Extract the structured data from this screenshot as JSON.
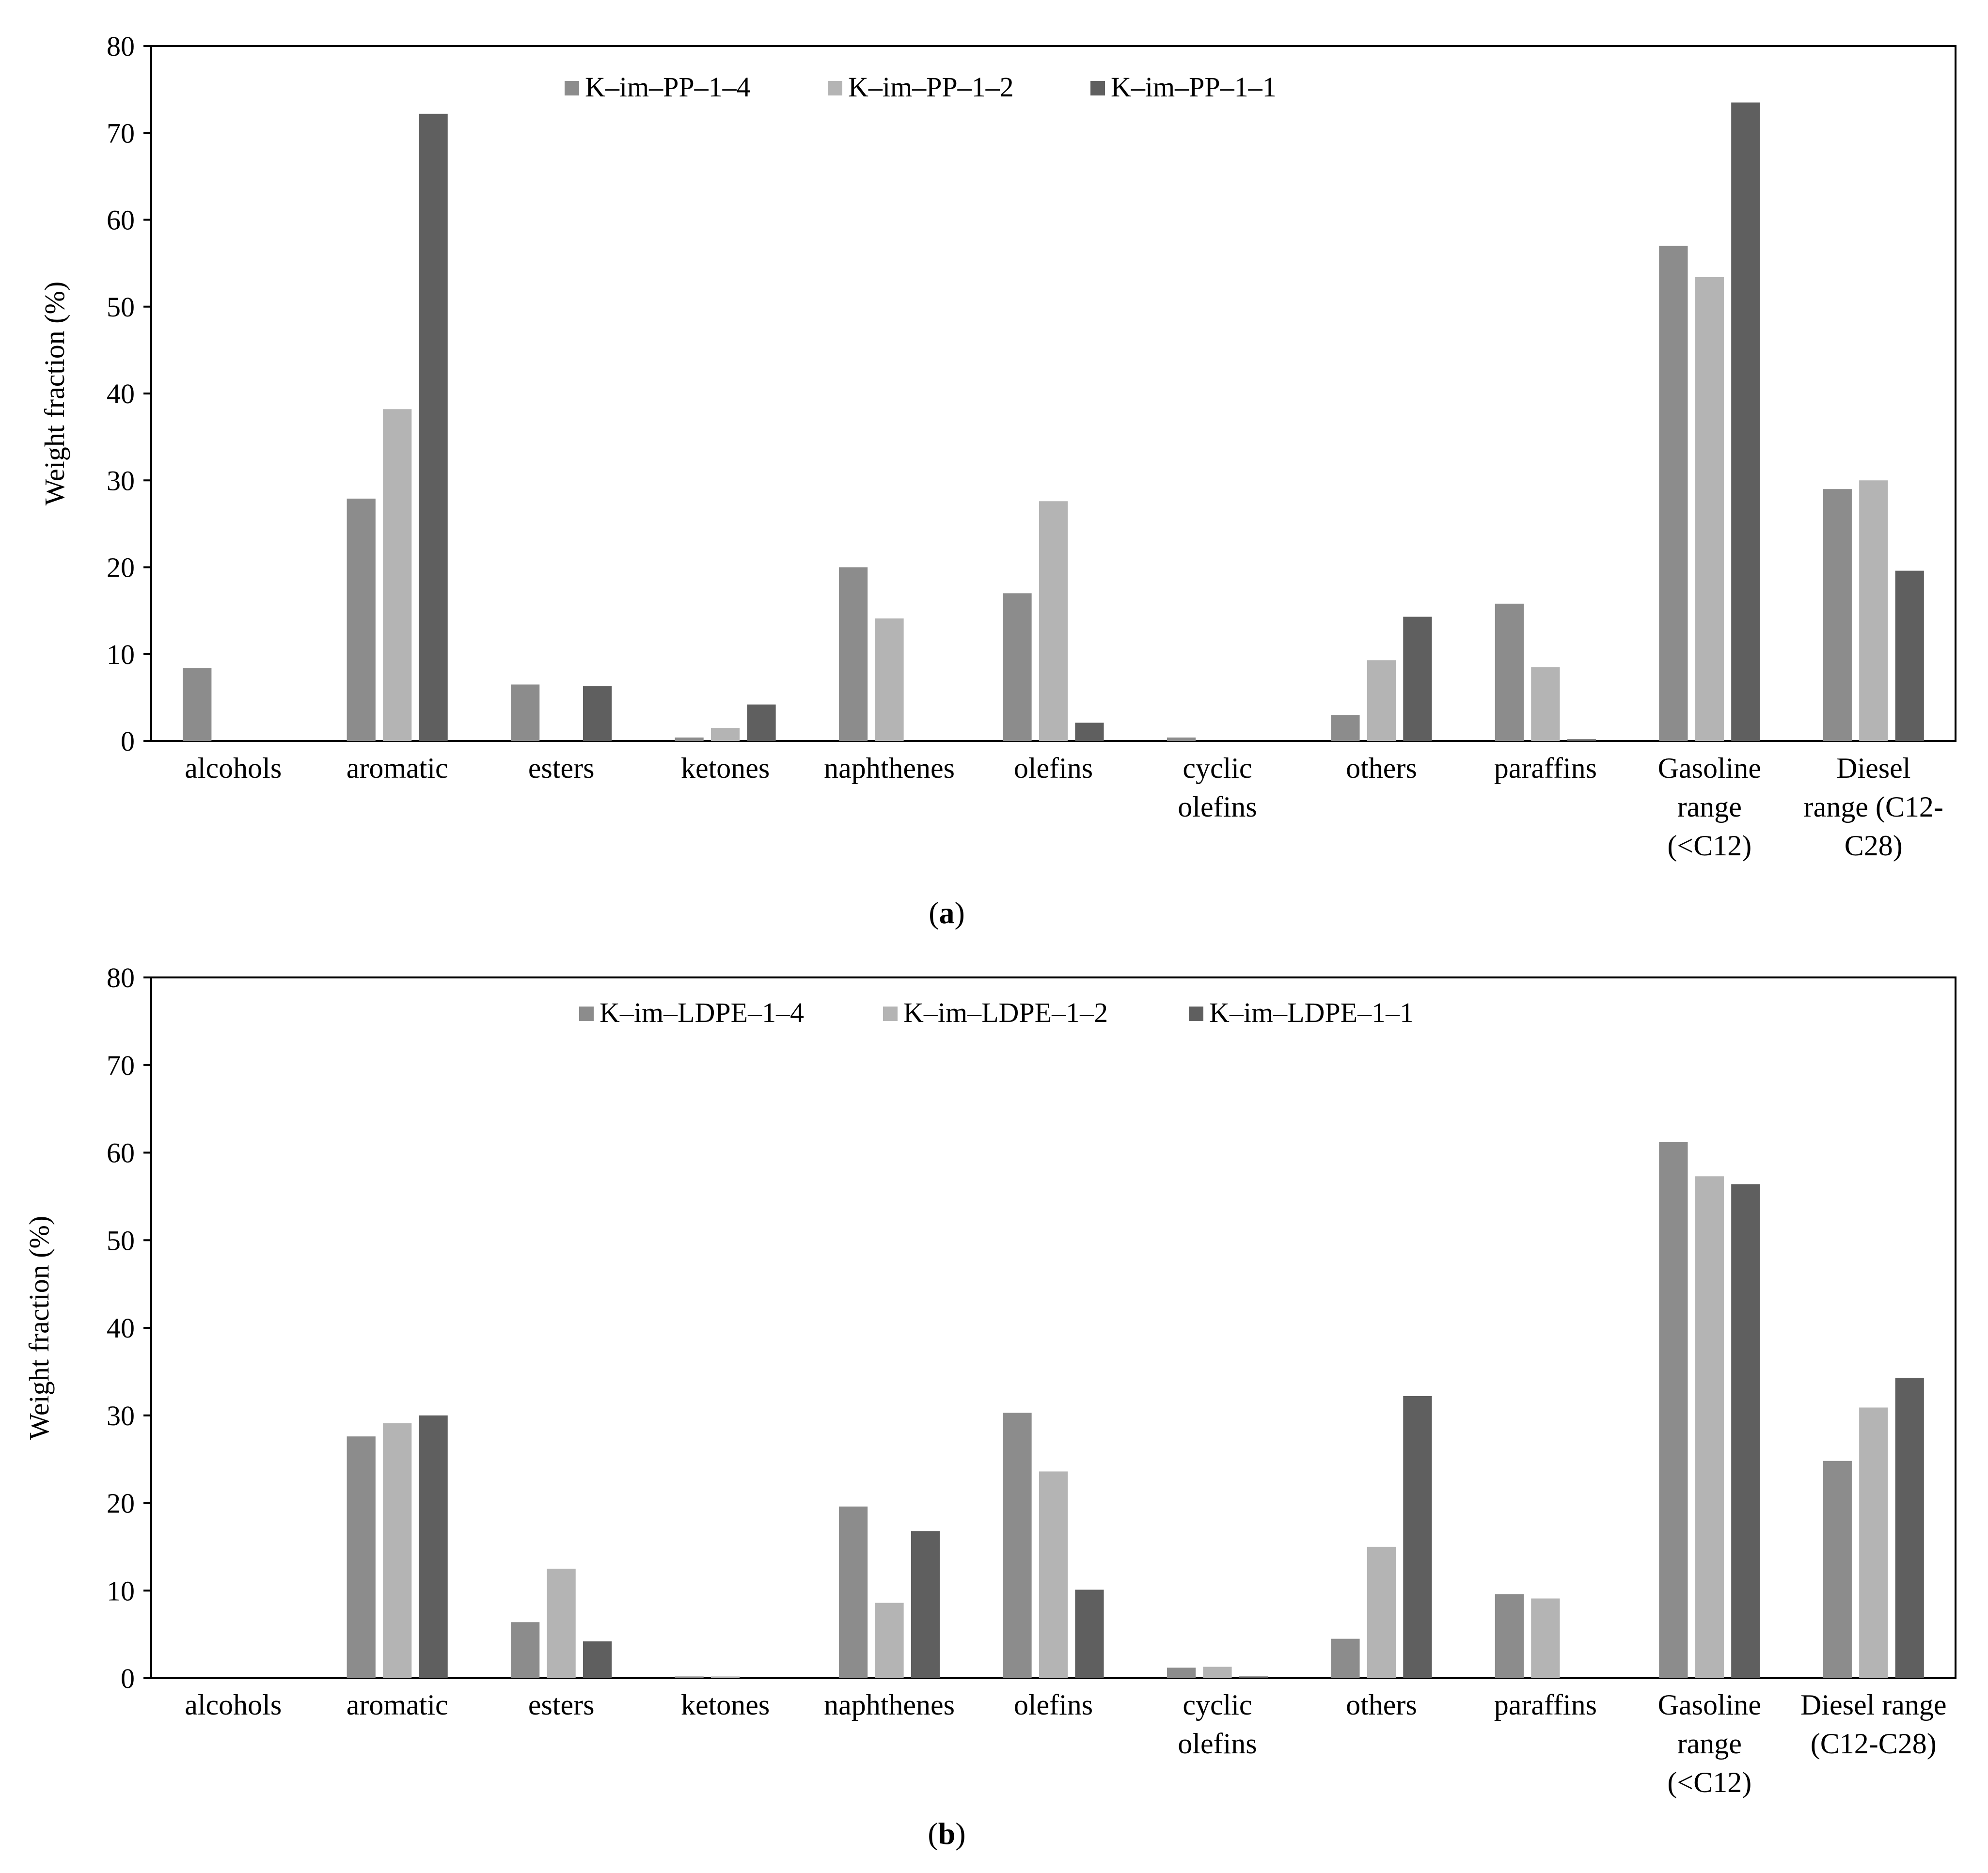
{
  "colors": {
    "series_1_4": "#8c8c8c",
    "series_1_2": "#b4b4b4",
    "series_1_1": "#5f5f5f",
    "axis": "#000000"
  },
  "chart_data": [
    {
      "type": "bar",
      "panel_label": {
        "open": "(",
        "letter": "a",
        "close": ")"
      },
      "ylabel": "Weight fraction (%)",
      "xlabel": "",
      "ylim": [
        0,
        80
      ],
      "yticks": [
        0,
        10,
        20,
        30,
        40,
        50,
        60,
        70,
        80
      ],
      "grid": false,
      "legend_position": "top-center",
      "categories": [
        [
          "alcohols"
        ],
        [
          "aromatic"
        ],
        [
          "esters"
        ],
        [
          "ketones"
        ],
        [
          "naphthenes"
        ],
        [
          "olefins"
        ],
        [
          "cyclic",
          "olefins"
        ],
        [
          "others"
        ],
        [
          "paraffins"
        ],
        [
          "Gasoline",
          "range",
          "(<C12)"
        ],
        [
          "Diesel",
          "range (C12-",
          "C28)"
        ]
      ],
      "series": [
        {
          "name": "K–im–PP–1–4",
          "color_key": "series_1_4",
          "values": [
            8.4,
            27.9,
            6.5,
            0.4,
            20.0,
            17.0,
            0.4,
            3.0,
            15.8,
            57.0,
            29.0
          ]
        },
        {
          "name": "K–im–PP–1–2",
          "color_key": "series_1_2",
          "values": [
            0,
            38.2,
            0,
            1.5,
            14.1,
            27.6,
            0,
            9.3,
            8.5,
            53.4,
            30.0
          ]
        },
        {
          "name": "K–im–PP–1–1",
          "color_key": "series_1_1",
          "values": [
            0,
            72.2,
            6.3,
            4.2,
            0,
            2.1,
            0,
            14.3,
            0.2,
            73.5,
            19.6
          ]
        }
      ]
    },
    {
      "type": "bar",
      "panel_label": {
        "open": "(",
        "letter": "b",
        "close": ")"
      },
      "ylabel": "Weight fraction (%)",
      "xlabel": "",
      "ylim": [
        0,
        80
      ],
      "yticks": [
        0,
        10,
        20,
        30,
        40,
        50,
        60,
        70,
        80
      ],
      "grid": false,
      "legend_position": "top-center",
      "categories": [
        [
          "alcohols"
        ],
        [
          "aromatic"
        ],
        [
          "esters"
        ],
        [
          "ketones"
        ],
        [
          "naphthenes"
        ],
        [
          "olefins"
        ],
        [
          "cyclic",
          "olefins"
        ],
        [
          "others"
        ],
        [
          "paraffins"
        ],
        [
          "Gasoline",
          "range",
          "(<C12)"
        ],
        [
          "Diesel range",
          "(C12-C28)"
        ]
      ],
      "series": [
        {
          "name": "K–im–LDPE–1–4",
          "color_key": "series_1_4",
          "values": [
            0,
            27.6,
            6.4,
            0.2,
            19.6,
            30.3,
            1.2,
            4.5,
            9.6,
            61.2,
            24.8
          ]
        },
        {
          "name": "K–im–LDPE–1–2",
          "color_key": "series_1_2",
          "values": [
            0,
            29.1,
            12.5,
            0.2,
            8.6,
            23.6,
            1.3,
            15.0,
            9.1,
            57.3,
            30.9
          ]
        },
        {
          "name": "K–im–LDPE–1–1",
          "color_key": "series_1_1",
          "values": [
            0,
            30.0,
            4.2,
            0,
            16.8,
            10.1,
            0.2,
            32.2,
            0,
            56.4,
            34.3
          ]
        }
      ]
    }
  ]
}
